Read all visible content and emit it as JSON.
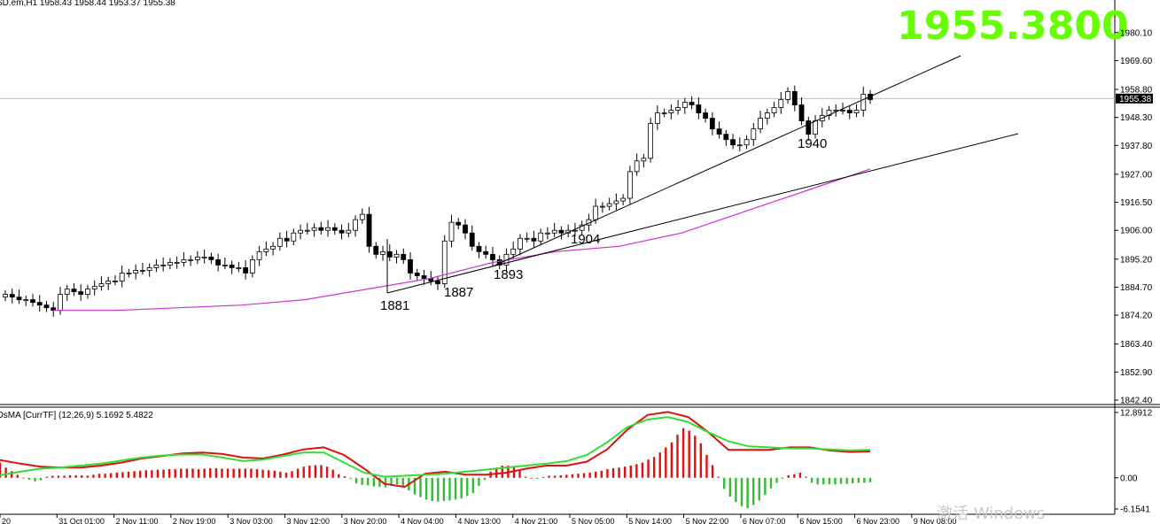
{
  "window": {
    "symbol_header": "SD.em,H1  1958.43 1958.44 1953.37 1955.38",
    "big_price": "1955.3800",
    "watermark": "激活 Windows"
  },
  "chart_data": [
    {
      "type": "candlestick",
      "title": "",
      "timeframe": "H1",
      "ylim": [
        1842.4,
        1985.0
      ],
      "y_ticks": [
        "1980.10",
        "1969.60",
        "1958.80",
        "1948.30",
        "1937.80",
        "1927.00",
        "1916.50",
        "1906.00",
        "1895.20",
        "1884.70",
        "1874.20",
        "1863.40",
        "1852.90",
        "1842.40"
      ],
      "current_price": 1955.38,
      "current_price_label": "1955.38",
      "ohlc": {
        "open": 1958.43,
        "high": 1958.44,
        "low": 1953.37,
        "close": 1955.38
      },
      "candles_close": [
        1882,
        1881,
        1880,
        1880,
        1879,
        1878,
        1877,
        1876,
        1882,
        1884,
        1883,
        1882,
        1884,
        1885,
        1886,
        1887,
        1887,
        1890,
        1890,
        1891,
        1891,
        1892,
        1893,
        1893,
        1894,
        1894,
        1895,
        1895,
        1896,
        1896,
        1895,
        1893,
        1893,
        1892,
        1892,
        1890,
        1895,
        1898,
        1899,
        1900,
        1903,
        1902,
        1905,
        1906,
        1906,
        1907,
        1906,
        1907,
        1906,
        1905,
        1906,
        1910,
        1912,
        1900,
        1897,
        1898,
        1896,
        1897,
        1895,
        1890,
        1889,
        1888,
        1887,
        1886,
        1902,
        1909,
        1908,
        1905,
        1900,
        1898,
        1897,
        1895,
        1893,
        1897,
        1899,
        1903,
        1903,
        1902,
        1905,
        1905,
        1906,
        1905,
        1906,
        1906,
        1908,
        1910,
        1915,
        1915,
        1916,
        1917,
        1918,
        1928,
        1932,
        1933,
        1946,
        1950,
        1950,
        1951,
        1952,
        1954,
        1953,
        1950,
        1948,
        1944,
        1942,
        1940,
        1938,
        1938,
        1940,
        1944,
        1948,
        1950,
        1952,
        1955,
        1958,
        1953,
        1947,
        1942,
        1947,
        1949,
        1951,
        1951,
        1951,
        1950,
        1951,
        1957,
        1955
      ],
      "moving_average": [
        1876,
        1876,
        1877,
        1878,
        1880,
        1884,
        1888,
        1894,
        1898,
        1900,
        1905,
        1913,
        1921,
        1929
      ],
      "macd_line": [
        3.5,
        2.8,
        2.2,
        2.0,
        2.0,
        2.4,
        3.0,
        3.8,
        4.3,
        4.8,
        5.0,
        4.7,
        4.0,
        3.8,
        4.6,
        5.6,
        6.0,
        4.5,
        1.8,
        -1.2,
        -1.8,
        0.8,
        1.2,
        0.6,
        0.6,
        1.0,
        1.8,
        2.4,
        2.4,
        3.2,
        5.6,
        9.5,
        12.4,
        13.0,
        12.0,
        9.0,
        5.5,
        5.5,
        5.5,
        6.0,
        6.0,
        5.4,
        5.1,
        5.2
      ],
      "signal_line": [
        0.5,
        1.2,
        1.8,
        2.0,
        2.4,
        2.8,
        3.4,
        4.0,
        4.4,
        4.6,
        4.6,
        4.0,
        3.3,
        3.6,
        4.3,
        5.0,
        5.0,
        3.0,
        1.0,
        0.2,
        0.4,
        0.6,
        0.8,
        1.2,
        1.6,
        2.0,
        2.4,
        2.8,
        3.3,
        4.5,
        7.0,
        10.0,
        11.5,
        12.0,
        11.0,
        9.0,
        7.2,
        6.2,
        6.0,
        5.8,
        5.8,
        5.6,
        5.4,
        5.5
      ],
      "histogram": [
        3.0,
        2.0,
        1.3,
        0.6,
        0.0,
        -0.4,
        -0.7,
        -0.5,
        0.2,
        0.4,
        0.4,
        0.4,
        0.5,
        0.5,
        0.5,
        0.4,
        0.6,
        0.8,
        0.8,
        0.9,
        1.0,
        1.1,
        1.2,
        1.3,
        1.4,
        1.5,
        1.5,
        1.6,
        1.6,
        1.7,
        1.7,
        1.8,
        1.8,
        1.8,
        1.7,
        1.8,
        1.9,
        1.9,
        1.8,
        1.8,
        1.8,
        1.8,
        1.8,
        1.8,
        1.7,
        1.6,
        1.5,
        1.4,
        1.2,
        1.0,
        1.3,
        1.8,
        2.2,
        2.4,
        2.5,
        2.5,
        2.2,
        1.6,
        0.7,
        0.3,
        -0.2,
        -1.1,
        -1.4,
        -1.5,
        -1.7,
        -1.8,
        -1.9,
        -1.6,
        -1.3,
        -1.6,
        -2.5,
        -3.3,
        -3.8,
        -4.3,
        -4.6,
        -4.7,
        -4.6,
        -4.5,
        -4.3,
        -4.1,
        -3.6,
        -3.0,
        -1.6,
        -0.4,
        1.2,
        2.0,
        2.4,
        2.4,
        2.2,
        1.4,
        0.2,
        0.0,
        -0.2,
        0.1,
        0.4,
        0.4,
        0.5,
        0.6,
        0.7,
        0.8,
        0.9,
        1.0,
        1.2,
        1.4,
        1.7,
        1.9,
        2.0,
        2.2,
        2.4,
        2.7,
        3.0,
        3.6,
        4.1,
        5.0,
        6.0,
        7.0,
        8.5,
        9.8,
        9.3,
        8.3,
        6.8,
        4.5,
        2.5,
        0.2,
        -2.2,
        -3.7,
        -4.8,
        -5.6,
        -6.0,
        -5.4,
        -4.5,
        -3.4,
        -2.1,
        -1.0,
        -0.2,
        0.5,
        0.7,
        1.0,
        0.2,
        -1.0,
        -1.3,
        -1.3,
        -1.3,
        -1.3,
        -1.2,
        -1.2,
        -1.1,
        -1.0,
        -1.0,
        -0.9
      ],
      "trendline_labels": [
        "1881",
        "1887",
        "1893",
        "1904",
        "1940"
      ],
      "time_axis": [
        "20",
        "31 Oct 01:00",
        "2 Nov 11:00",
        "2 Nov 19:00",
        "3 Nov 03:00",
        "3 Nov 12:00",
        "3 Nov 20:00",
        "4 Nov 04:00",
        "4 Nov 13:00",
        "4 Nov 21:00",
        "5 Nov 05:00",
        "5 Nov 14:00",
        "5 Nov 22:00",
        "6 Nov 07:00",
        "6 Nov 15:00",
        "6 Nov 23:00",
        "9 Nov 08:00"
      ]
    },
    {
      "type": "bar",
      "title": "",
      "indicator_header": "OsMA [CurrTF] (12,26,9) 5.1692 5.4822",
      "ylim": [
        -6.1541,
        12.8912
      ],
      "y_ticks": [
        "12.8912",
        "0.00",
        "-6.1541"
      ]
    }
  ],
  "colors": {
    "bull_body": "#ffffff",
    "bear_body": "#000000",
    "ma": "#cc33cc",
    "macd": "#dd1111",
    "signal": "#33dd33",
    "hist_up": "#dd1111",
    "hist_down": "#33bb33",
    "big_price": "#66ff00",
    "price_tag": "#000000"
  }
}
